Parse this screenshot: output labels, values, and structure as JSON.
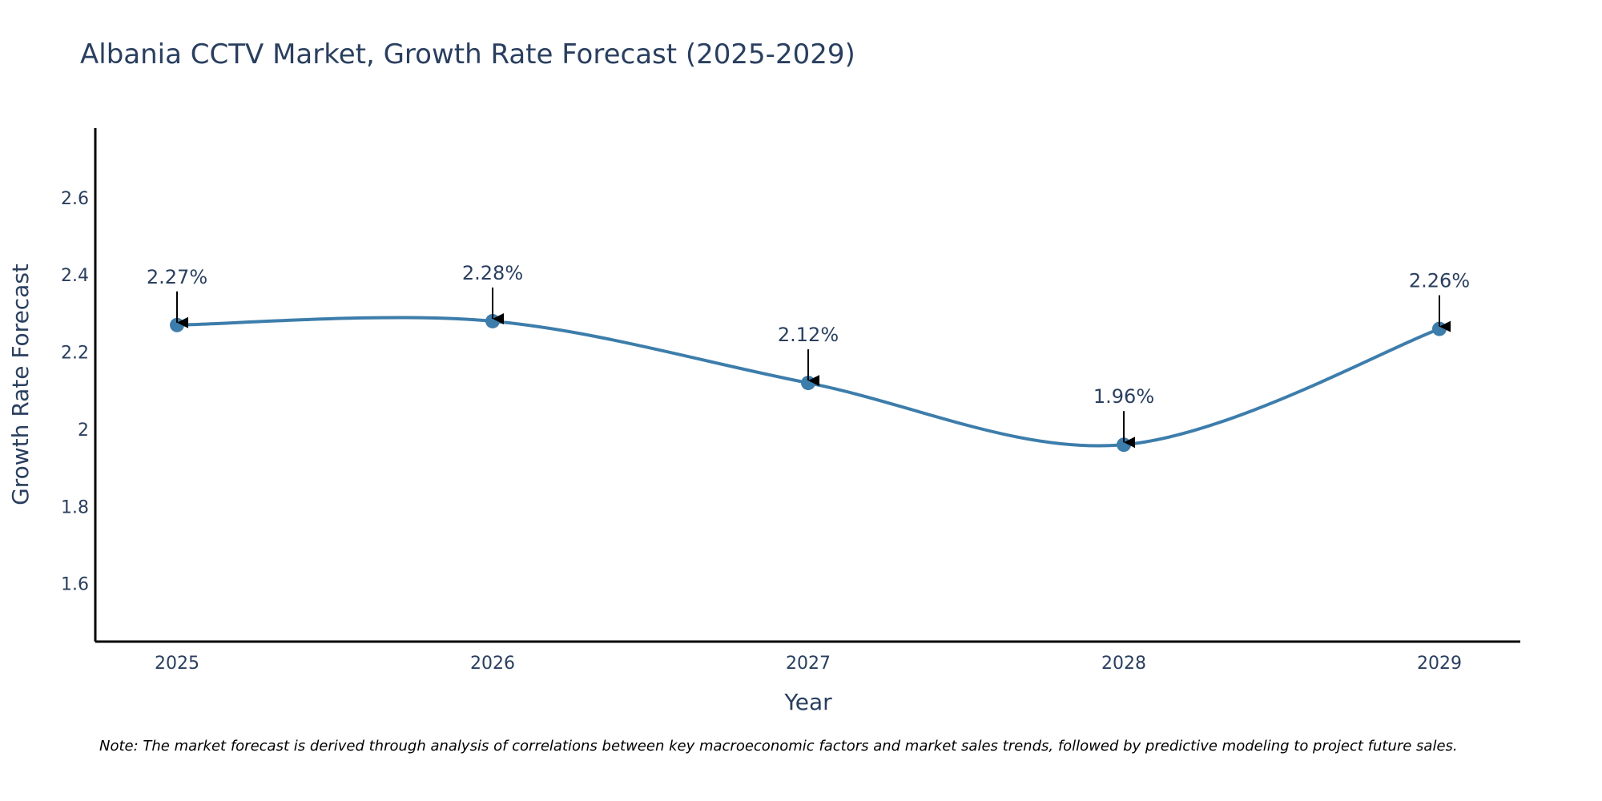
{
  "chart_data": {
    "type": "line",
    "title": "Albania CCTV Market, Growth Rate Forecast (2025-2029)",
    "xlabel": "Year",
    "ylabel": "Growth Rate Forecast",
    "categories": [
      "2025",
      "2026",
      "2027",
      "2028",
      "2029"
    ],
    "series": [
      {
        "name": "Growth Rate Forecast",
        "values": [
          2.27,
          2.28,
          2.12,
          1.96,
          2.26
        ],
        "color": "#3d7dab"
      }
    ],
    "data_labels": [
      "2.27%",
      "2.28%",
      "2.12%",
      "1.96%",
      "2.26%"
    ],
    "ylim": [
      1.45,
      2.78
    ],
    "yticks": [
      1.6,
      1.8,
      2,
      2.2,
      2.4,
      2.6
    ],
    "ytick_labels": [
      "1.6",
      "1.8",
      "2",
      "2.2",
      "2.4",
      "2.6"
    ],
    "grid": false,
    "legend": "none"
  },
  "note": "Note: The market forecast is derived through analysis of correlations between key macroeconomic factors and market sales trends, followed by predictive modeling to project future sales."
}
